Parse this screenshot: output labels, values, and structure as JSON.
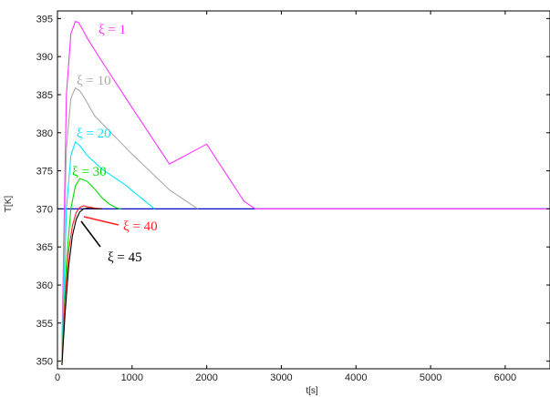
{
  "chart_data": {
    "type": "line",
    "xlabel": "t[s]",
    "ylabel": "T[K]",
    "xlim": [
      0,
      6600
    ],
    "ylim": [
      349,
      396
    ],
    "xticks": [
      0,
      1000,
      2000,
      3000,
      4000,
      5000,
      6000
    ],
    "yticks": [
      350,
      355,
      360,
      365,
      370,
      375,
      380,
      385,
      390,
      395
    ],
    "grid": false,
    "series": [
      {
        "label": "ξ = 1",
        "color": "#ff33ff",
        "x": [
          60,
          120,
          180,
          240,
          280,
          330,
          400,
          600,
          1000,
          1500,
          2000,
          2500,
          2650,
          6600
        ],
        "y": [
          352,
          385,
          393,
          394.6,
          394.5,
          393.7,
          392.4,
          389.3,
          383.3,
          375.9,
          378.5,
          371.0,
          370,
          370
        ]
      },
      {
        "label": "ξ = 10",
        "color": "#aaaaaa",
        "x": [
          60,
          120,
          180,
          240,
          300,
          360,
          500,
          1000,
          1500,
          1880
        ],
        "y": [
          351,
          378,
          384.5,
          385.9,
          385.5,
          384.6,
          382.2,
          377.2,
          372.5,
          370
        ]
      },
      {
        "label": "ξ = 20",
        "color": "#00e5ff",
        "x": [
          60,
          120,
          180,
          240,
          300,
          400,
          600,
          900,
          1200,
          1300
        ],
        "y": [
          350,
          370,
          377,
          378.8,
          378.3,
          377,
          375.2,
          373.2,
          370.8,
          370
        ]
      },
      {
        "label": "ξ = 30",
        "color": "#00dd00",
        "x": [
          60,
          120,
          180,
          240,
          300,
          400,
          500,
          600,
          700,
          800,
          850
        ],
        "y": [
          350,
          363,
          370,
          373,
          374,
          373.6,
          372.6,
          371.4,
          370.6,
          370.1,
          370
        ]
      },
      {
        "label": "ξ = 40",
        "color": "#ff2222",
        "x": [
          60,
          100,
          150,
          200,
          250,
          300,
          350,
          400,
          500,
          600
        ],
        "y": [
          349.5,
          358,
          364.5,
          367.8,
          369.5,
          370.2,
          370.4,
          370.3,
          370.1,
          370
        ]
      },
      {
        "label": "ξ = 45",
        "color": "#000000",
        "x": [
          60,
          100,
          150,
          200,
          250,
          300,
          350,
          400,
          500,
          600
        ],
        "y": [
          349.5,
          356,
          362.5,
          366.5,
          368.6,
          369.6,
          370,
          370.1,
          370,
          370
        ]
      }
    ],
    "annotations": [
      {
        "text": "ξ = 1",
        "color": "#ff33ff"
      },
      {
        "text": "ξ = 10",
        "color": "#aaaaaa"
      },
      {
        "text": "ξ = 20",
        "color": "#00e5ff"
      },
      {
        "text": "ξ = 30",
        "color": "#00dd00"
      },
      {
        "text": "ξ = 40",
        "color": "#ff2222"
      },
      {
        "text": "ξ = 45",
        "color": "#000000"
      }
    ],
    "reference_line": {
      "y": 370,
      "color": "#0000cc"
    }
  }
}
